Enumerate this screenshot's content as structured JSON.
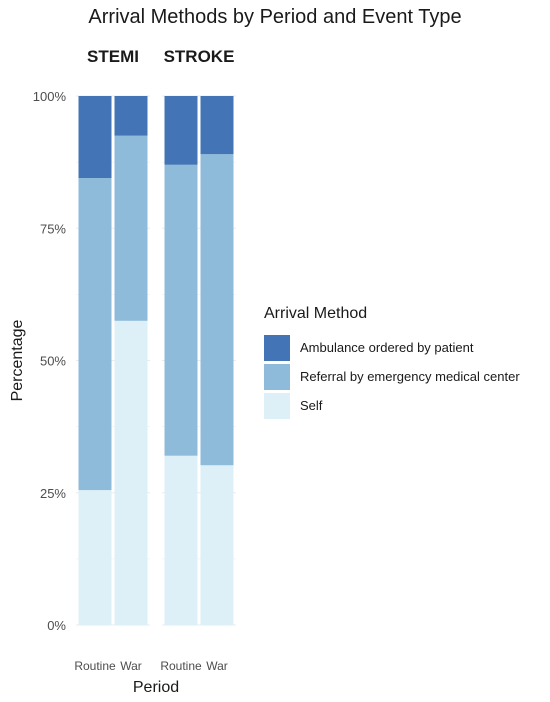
{
  "chart_data": {
    "type": "bar",
    "stacked": true,
    "percent": true,
    "title": "Arrival Methods by Period and Event Type",
    "xlabel": "Period",
    "ylabel": "Percentage",
    "ylim": [
      0,
      100
    ],
    "yticks": [
      "0%",
      "25%",
      "50%",
      "75%",
      "100%"
    ],
    "grid": true,
    "legend_position": "right",
    "legend_title": "Arrival Method",
    "facets": [
      "STEMI",
      "STROKE"
    ],
    "categories": [
      "Routine",
      "War"
    ],
    "series": [
      {
        "name": "Self",
        "color": "#ddf0f7",
        "values": {
          "STEMI": [
            25.5,
            57.5
          ],
          "STROKE": [
            32,
            30.2
          ]
        }
      },
      {
        "name": "Referral by emergency medical center",
        "color": "#8fbbdb",
        "values": {
          "STEMI": [
            59,
            35
          ],
          "STROKE": [
            55,
            58.8
          ]
        }
      },
      {
        "name": "Ambulance ordered by patient",
        "color": "#4274b6",
        "values": {
          "STEMI": [
            15.5,
            7.5
          ],
          "STROKE": [
            13,
            11
          ]
        }
      }
    ],
    "legend_order": [
      "Ambulance ordered by patient",
      "Referral by emergency medical center",
      "Self"
    ]
  }
}
